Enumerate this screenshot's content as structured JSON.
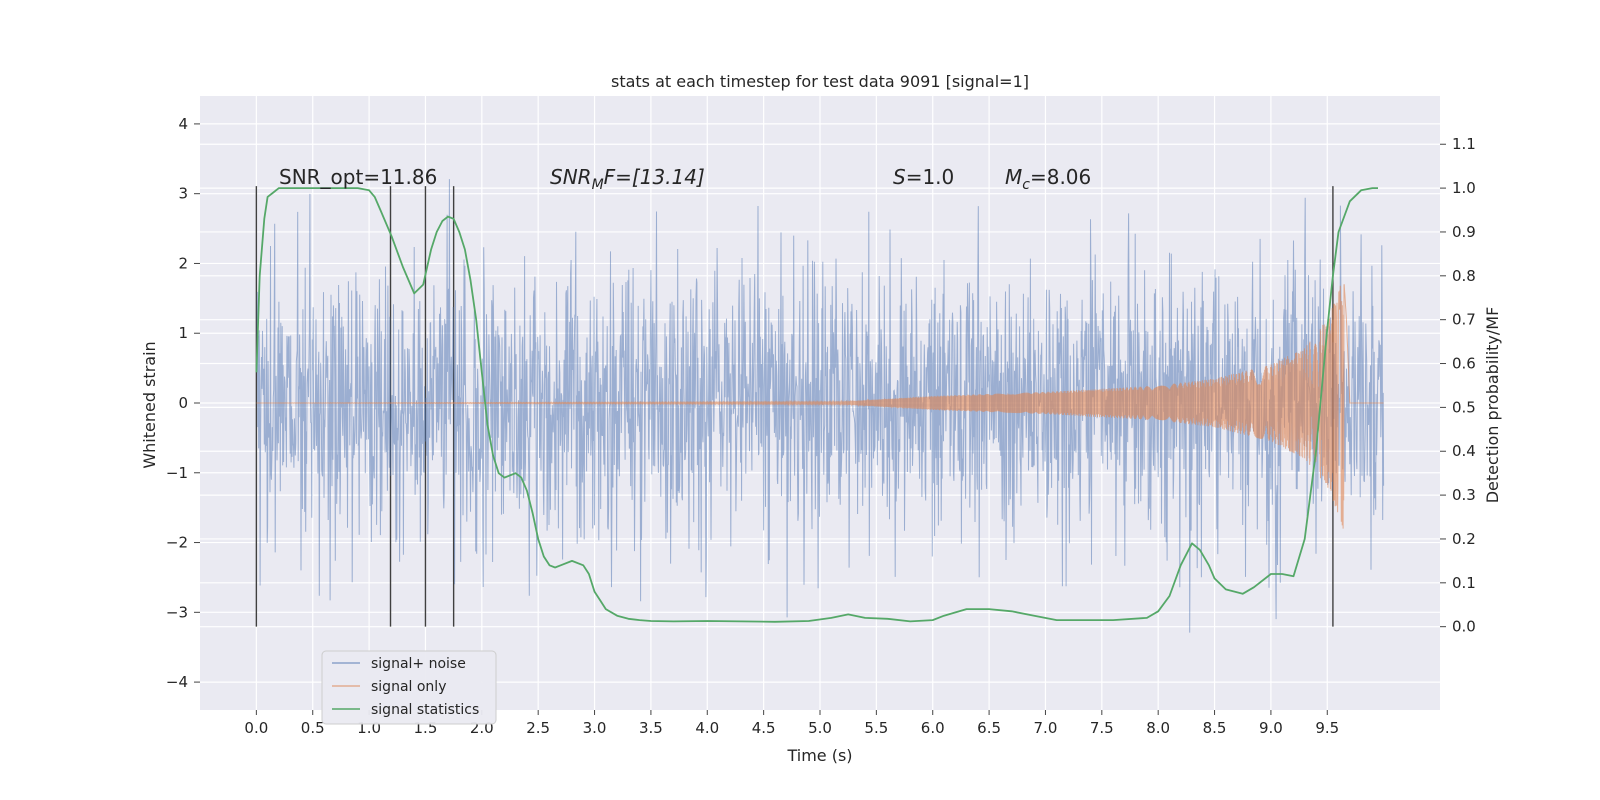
{
  "chart_data": {
    "type": "line",
    "title": "stats at each timestep for test data 9091 [signal=1]",
    "xlabel": "Time (s)",
    "ylabel": "Whitened strain",
    "y2label": "Detection probability/MF",
    "xlim": [
      -0.5,
      10.5
    ],
    "ylim": [
      -4.4,
      4.4
    ],
    "y2lim": [
      -0.19,
      1.21
    ],
    "xticks": [
      "0.0",
      "0.5",
      "1.0",
      "1.5",
      "2.0",
      "2.5",
      "3.0",
      "3.5",
      "4.0",
      "4.5",
      "5.0",
      "5.5",
      "6.0",
      "6.5",
      "7.0",
      "7.5",
      "8.0",
      "8.5",
      "9.0",
      "9.5"
    ],
    "yticks": [
      "4",
      "3",
      "2",
      "1",
      "0",
      "−1",
      "−2",
      "−3",
      "−4"
    ],
    "y2ticks": [
      "1.1",
      "1.0",
      "0.9",
      "0.8",
      "0.7",
      "0.6",
      "0.5",
      "0.4",
      "0.3",
      "0.2",
      "0.1",
      "0.0"
    ],
    "grid": true,
    "legend_position": "lower-left",
    "annotations": {
      "snr_opt": "SNR_opt=11.86",
      "snr_mf_main": "SNR",
      "snr_mf_sub": "M",
      "snr_mf_rest": "F=[13.14]",
      "s_main": "S",
      "s_rest": "=1.0",
      "mc_main": "M",
      "mc_sub": "c",
      "mc_rest": "=8.06"
    },
    "vlines_x": [
      0.0,
      1.19,
      1.5,
      1.75,
      9.55
    ],
    "series": [
      {
        "name": "signal+ noise",
        "color": "#4c72b0",
        "x_start": 0.0,
        "x_end": 10.0,
        "envelope": "noise spikes reaching about ±4"
      },
      {
        "name": "signal only",
        "color": "#dd8452",
        "chirp_start": 5.2,
        "chirp_peak_time": 9.65,
        "amplitude_points": [
          [
            0.0,
            0.0
          ],
          [
            5.2,
            0.02
          ],
          [
            6.0,
            0.1
          ],
          [
            7.0,
            0.16
          ],
          [
            8.0,
            0.25
          ],
          [
            8.5,
            0.35
          ],
          [
            9.0,
            0.55
          ],
          [
            9.3,
            0.8
          ],
          [
            9.5,
            1.2
          ],
          [
            9.6,
            1.6
          ],
          [
            9.65,
            1.85
          ],
          [
            9.67,
            1.3
          ],
          [
            9.7,
            0.0
          ],
          [
            10.0,
            0.0
          ]
        ]
      },
      {
        "name": "signal statistics",
        "color": "#55a868",
        "x": [
          0.0,
          0.03,
          0.07,
          0.1,
          0.15,
          0.2,
          0.3,
          0.5,
          0.7,
          0.9,
          1.0,
          1.05,
          1.1,
          1.2,
          1.3,
          1.4,
          1.48,
          1.55,
          1.6,
          1.65,
          1.7,
          1.75,
          1.8,
          1.85,
          1.9,
          1.95,
          2.0,
          2.05,
          2.1,
          2.15,
          2.2,
          2.25,
          2.3,
          2.35,
          2.4,
          2.45,
          2.5,
          2.55,
          2.6,
          2.65,
          2.7,
          2.8,
          2.9,
          2.95,
          3.0,
          3.05,
          3.1,
          3.2,
          3.3,
          3.4,
          3.5,
          3.7,
          4.0,
          4.3,
          4.6,
          4.9,
          5.1,
          5.25,
          5.4,
          5.6,
          5.8,
          6.0,
          6.1,
          6.3,
          6.5,
          6.7,
          6.9,
          7.1,
          7.3,
          7.6,
          7.9,
          8.0,
          8.1,
          8.2,
          8.3,
          8.37,
          8.45,
          8.5,
          8.6,
          8.75,
          8.85,
          9.0,
          9.1,
          9.2,
          9.3,
          9.4,
          9.5,
          9.55,
          9.6,
          9.7,
          9.8,
          9.9,
          9.95
        ],
        "y": [
          0.58,
          0.8,
          0.93,
          0.98,
          0.99,
          1.0,
          1.0,
          1.0,
          1.0,
          1.0,
          0.995,
          0.98,
          0.95,
          0.89,
          0.82,
          0.76,
          0.78,
          0.86,
          0.9,
          0.925,
          0.935,
          0.93,
          0.9,
          0.86,
          0.79,
          0.7,
          0.58,
          0.46,
          0.39,
          0.35,
          0.34,
          0.345,
          0.35,
          0.34,
          0.31,
          0.26,
          0.2,
          0.16,
          0.14,
          0.135,
          0.14,
          0.15,
          0.14,
          0.12,
          0.08,
          0.06,
          0.04,
          0.025,
          0.018,
          0.015,
          0.013,
          0.012,
          0.013,
          0.012,
          0.011,
          0.013,
          0.02,
          0.028,
          0.02,
          0.018,
          0.012,
          0.015,
          0.025,
          0.04,
          0.04,
          0.035,
          0.025,
          0.015,
          0.015,
          0.015,
          0.02,
          0.035,
          0.07,
          0.14,
          0.19,
          0.175,
          0.14,
          0.11,
          0.085,
          0.075,
          0.09,
          0.12,
          0.12,
          0.115,
          0.2,
          0.4,
          0.68,
          0.8,
          0.9,
          0.97,
          0.995,
          1.0,
          1.0
        ]
      }
    ]
  }
}
